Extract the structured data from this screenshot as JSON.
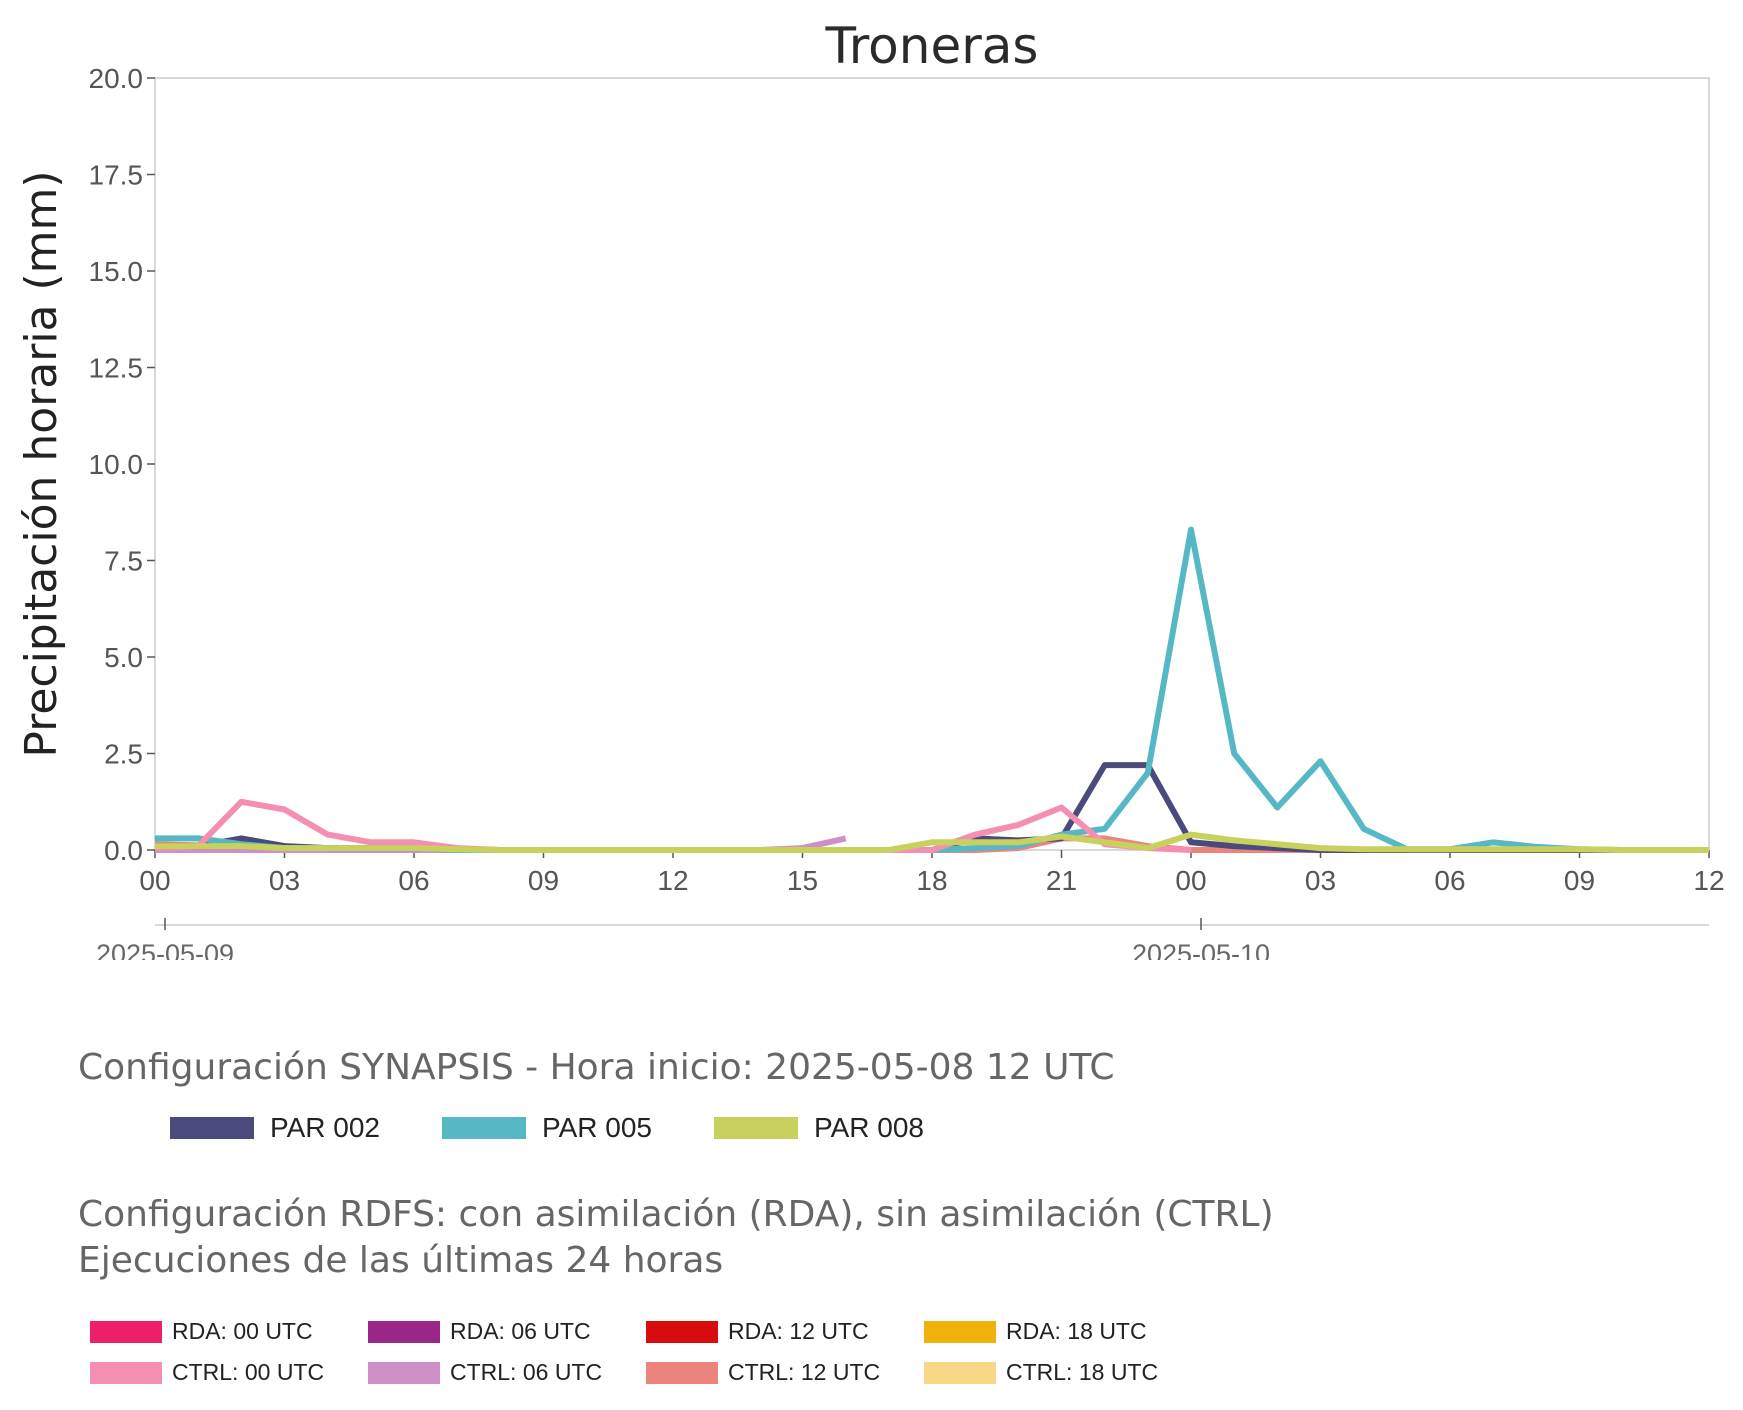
{
  "chart_data": {
    "type": "line",
    "title": "Troneras",
    "ylabel": "Precipitación horaria (mm)",
    "xlabel": "",
    "ylim": [
      0,
      20
    ],
    "xlim": [
      "2025-05-09 00",
      "2025-05-10 12"
    ],
    "yticks": [
      "0.0",
      "2.5",
      "5.0",
      "7.5",
      "10.0",
      "12.5",
      "15.0",
      "17.5",
      "20.0"
    ],
    "xticks": [
      "00",
      "03",
      "06",
      "09",
      "12",
      "15",
      "18",
      "21",
      "00",
      "03",
      "06",
      "09",
      "12"
    ],
    "date_labels": [
      {
        "label": "2025-05-09",
        "at": "2025-05-09 00"
      },
      {
        "label": "2025-05-10",
        "at": "2025-05-10 00"
      }
    ],
    "grid": false,
    "x_hours": [
      "2025-05-09 00",
      "2025-05-09 01",
      "2025-05-09 02",
      "2025-05-09 03",
      "2025-05-09 04",
      "2025-05-09 05",
      "2025-05-09 06",
      "2025-05-09 07",
      "2025-05-09 08",
      "2025-05-09 09",
      "2025-05-09 10",
      "2025-05-09 11",
      "2025-05-09 12",
      "2025-05-09 13",
      "2025-05-09 14",
      "2025-05-09 15",
      "2025-05-09 16",
      "2025-05-09 17",
      "2025-05-09 18",
      "2025-05-09 19",
      "2025-05-09 20",
      "2025-05-09 21",
      "2025-05-09 22",
      "2025-05-09 23",
      "2025-05-10 00",
      "2025-05-10 01",
      "2025-05-10 02",
      "2025-05-10 03",
      "2025-05-10 04",
      "2025-05-10 05",
      "2025-05-10 06",
      "2025-05-10 07",
      "2025-05-10 08",
      "2025-05-10 09",
      "2025-05-10 10",
      "2025-05-10 11",
      "2025-05-10 12"
    ],
    "series": [
      {
        "name": "CTRL: 12 UTC",
        "color": "#ec847e",
        "group": "rdfs",
        "values": [
          0.15,
          0.12,
          0.05,
          0.05,
          0.03,
          0.02,
          0.02,
          0,
          0,
          0,
          0,
          0,
          0,
          0,
          0,
          0,
          0,
          0,
          0,
          0,
          0.05,
          0.3,
          0.3,
          0.1,
          0,
          0,
          0,
          0,
          0
        ]
      },
      {
        "name": "CTRL: 06 UTC",
        "color": "#cf8fc7",
        "group": "rdfs",
        "values": [
          0,
          0,
          0,
          0,
          0,
          0,
          0,
          0,
          0,
          0,
          0,
          0,
          0,
          0,
          0,
          0.05,
          0.3
        ]
      },
      {
        "name": "PAR 002",
        "color": "#4a4b7c",
        "group": "synapsis",
        "values": [
          0.1,
          0.1,
          0.3,
          0.1,
          0.05,
          0.05,
          0.05,
          0.02,
          0,
          0,
          0,
          0,
          0,
          0,
          0,
          0,
          0,
          0,
          0,
          0.3,
          0.25,
          0.3,
          2.2,
          2.2,
          0.2,
          0.1,
          0.05,
          0,
          0,
          0,
          0,
          0,
          0,
          0,
          0,
          0,
          0
        ]
      },
      {
        "name": "PAR 005",
        "color": "#56b8c4",
        "group": "synapsis",
        "values": [
          0.3,
          0.3,
          0.15,
          0.05,
          0.05,
          0.05,
          0.05,
          0,
          0,
          0,
          0,
          0,
          0,
          0,
          0,
          0,
          0,
          0,
          0,
          0.05,
          0.1,
          0.4,
          0.55,
          2,
          8.3,
          2.5,
          1.1,
          2.3,
          0.55,
          0.02,
          0.02,
          0.2,
          0.08,
          0.02,
          0,
          0,
          0
        ]
      },
      {
        "name": "CTRL: 00 UTC",
        "color": "#f58fb1",
        "group": "rdfs",
        "values": [
          0.05,
          0.1,
          1.25,
          1.05,
          0.4,
          0.2,
          0.2,
          0.05,
          0,
          0,
          0,
          0,
          0,
          0,
          0,
          0,
          0,
          0,
          0,
          0.4,
          0.65,
          1.1,
          0.15,
          0.05,
          0
        ]
      },
      {
        "name": "PAR 008",
        "color": "#c8d05e",
        "group": "synapsis",
        "values": [
          0.1,
          0.1,
          0.1,
          0.05,
          0.05,
          0.05,
          0.05,
          0.02,
          0,
          0,
          0,
          0,
          0,
          0,
          0,
          0,
          0,
          0,
          0.2,
          0.2,
          0.2,
          0.35,
          0.2,
          0.05,
          0.4,
          0.25,
          0.15,
          0.05,
          0.02,
          0.02,
          0.02,
          0.02,
          0.02,
          0.02,
          0,
          0,
          0
        ]
      }
    ]
  },
  "legends": {
    "synapsis": {
      "title": "Configuración SYNAPSIS - Hora inicio: 2025-05-08 12 UTC",
      "items": [
        {
          "label": "PAR 002",
          "color": "#4a4b7c"
        },
        {
          "label": "PAR 005",
          "color": "#56b8c4"
        },
        {
          "label": "PAR 008",
          "color": "#c8d05e"
        }
      ]
    },
    "rdfs": {
      "title": "Configuración RDFS: con asimilación (RDA), sin asimilación (CTRL)\n Ejecuciones de las últimas 24 horas",
      "items": [
        {
          "label": "RDA: 00 UTC",
          "color": "#ee1f69"
        },
        {
          "label": "RDA: 06 UTC",
          "color": "#9a2788"
        },
        {
          "label": "RDA: 12 UTC",
          "color": "#d80c0c"
        },
        {
          "label": "RDA: 18 UTC",
          "color": "#eeb20a"
        },
        {
          "label": "CTRL: 00 UTC",
          "color": "#f58fb1"
        },
        {
          "label": "CTRL: 06 UTC",
          "color": "#cf8fc7"
        },
        {
          "label": "CTRL: 12 UTC",
          "color": "#ec847e"
        },
        {
          "label": "CTRL: 18 UTC",
          "color": "#f7d886"
        }
      ]
    }
  }
}
